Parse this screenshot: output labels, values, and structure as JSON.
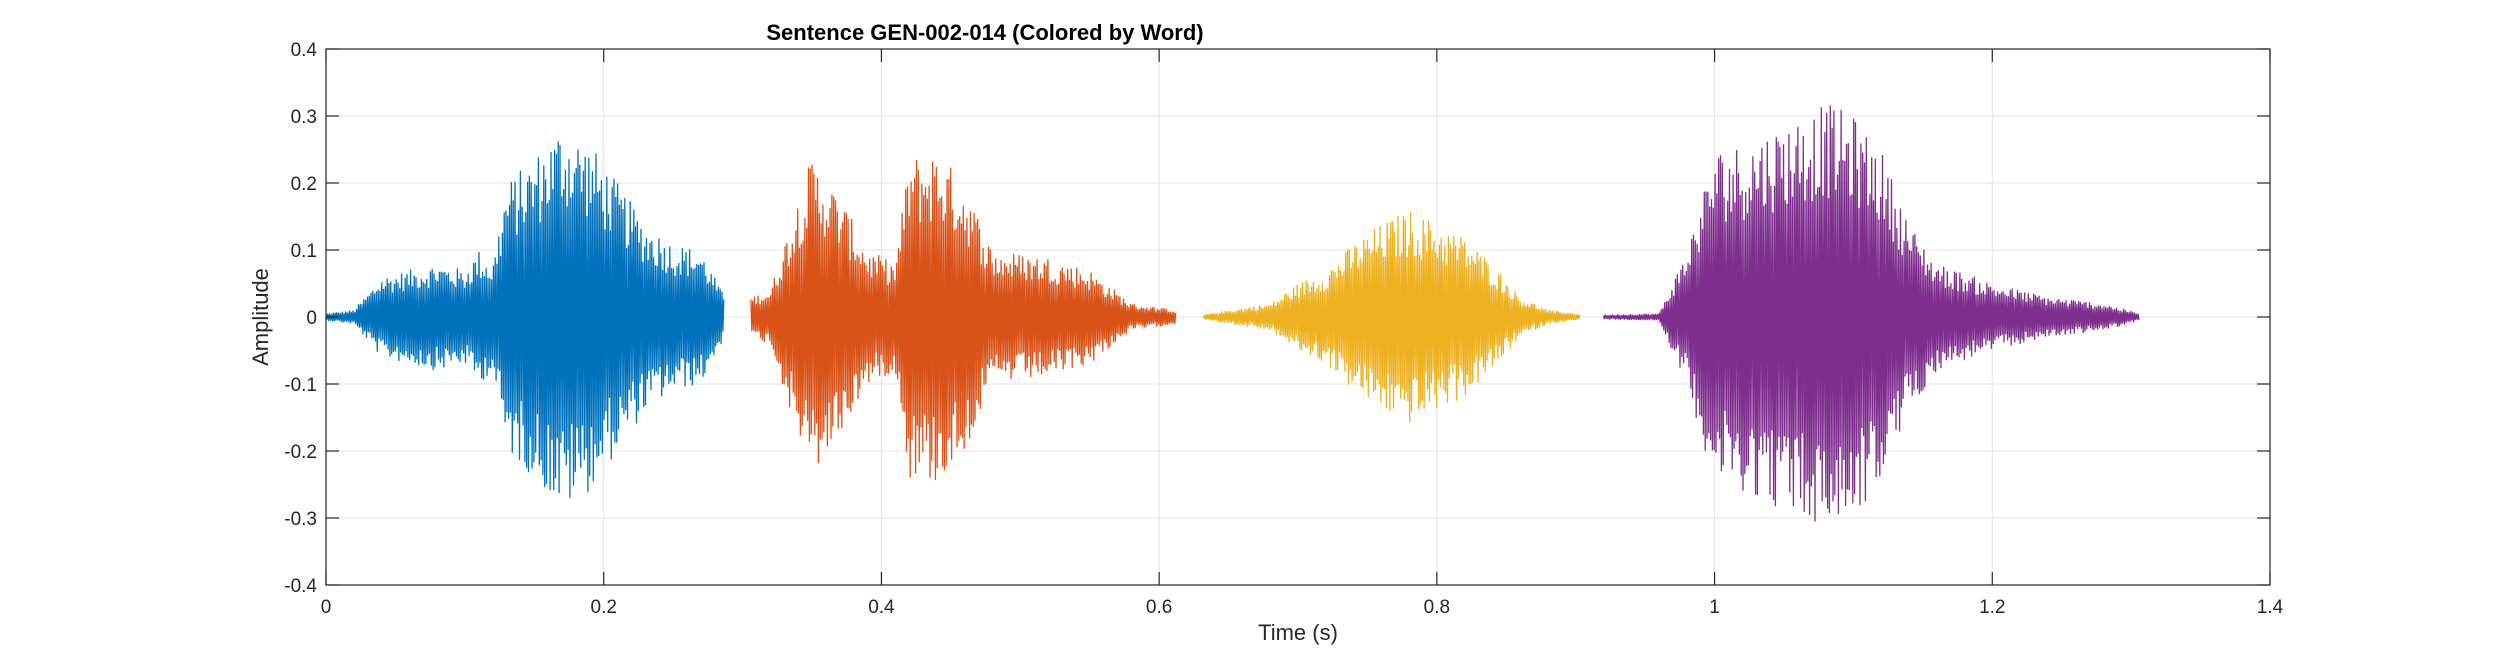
{
  "chart_data": {
    "type": "line",
    "title": "Sentence GEN-002-014 (Colored by Word)",
    "xlabel": "Time (s)",
    "ylabel": "Amplitude",
    "xlim": [
      0,
      1.4
    ],
    "ylim": [
      -0.4,
      0.4
    ],
    "grid": true,
    "xticks": [
      0,
      0.2,
      0.4,
      0.6,
      0.8,
      1,
      1.2,
      1.4
    ],
    "xtick_labels": [
      "0",
      "0.2",
      "0.4",
      "0.6",
      "0.8",
      "1",
      "1.2",
      "1.4"
    ],
    "yticks": [
      -0.4,
      -0.3,
      -0.2,
      -0.1,
      0,
      0.1,
      0.2,
      0.3,
      0.4
    ],
    "ytick_labels": [
      "-0.4",
      "-0.3",
      "-0.2",
      "-0.1",
      "0",
      "0.1",
      "0.2",
      "0.3",
      "0.4"
    ],
    "series": [
      {
        "color": "#0072BD",
        "t_start": 0.0,
        "t_end": 0.287,
        "envelope": [
          [
            0.0,
            0.005
          ],
          [
            0.02,
            0.01
          ],
          [
            0.04,
            0.06
          ],
          [
            0.06,
            0.07
          ],
          [
            0.08,
            0.08
          ],
          [
            0.1,
            0.07
          ],
          [
            0.11,
            0.1
          ],
          [
            0.12,
            0.08
          ],
          [
            0.13,
            0.2
          ],
          [
            0.15,
            0.24
          ],
          [
            0.17,
            0.29
          ],
          [
            0.19,
            0.26
          ],
          [
            0.21,
            0.2
          ],
          [
            0.23,
            0.14
          ],
          [
            0.25,
            0.11
          ],
          [
            0.27,
            0.1
          ],
          [
            0.287,
            0.03
          ]
        ]
      },
      {
        "color": "#D95319",
        "t_start": 0.306,
        "t_end": 0.612,
        "envelope": [
          [
            0.306,
            0.03
          ],
          [
            0.32,
            0.04
          ],
          [
            0.34,
            0.18
          ],
          [
            0.35,
            0.24
          ],
          [
            0.37,
            0.18
          ],
          [
            0.39,
            0.1
          ],
          [
            0.41,
            0.08
          ],
          [
            0.42,
            0.24
          ],
          [
            0.44,
            0.25
          ],
          [
            0.46,
            0.2
          ],
          [
            0.48,
            0.1
          ],
          [
            0.52,
            0.09
          ],
          [
            0.55,
            0.07
          ],
          [
            0.58,
            0.02
          ],
          [
            0.612,
            0.01
          ]
        ]
      },
      {
        "color": "#EDB120",
        "t_start": 0.632,
        "t_end": 0.903,
        "envelope": [
          [
            0.632,
            0.003
          ],
          [
            0.65,
            0.01
          ],
          [
            0.68,
            0.02
          ],
          [
            0.7,
            0.05
          ],
          [
            0.72,
            0.07
          ],
          [
            0.74,
            0.11
          ],
          [
            0.76,
            0.14
          ],
          [
            0.78,
            0.16
          ],
          [
            0.8,
            0.14
          ],
          [
            0.82,
            0.12
          ],
          [
            0.84,
            0.08
          ],
          [
            0.86,
            0.03
          ],
          [
            0.88,
            0.01
          ],
          [
            0.903,
            0.004
          ]
        ]
      },
      {
        "color": "#7E2F8E",
        "t_start": 0.92,
        "t_end": 1.306,
        "envelope": [
          [
            0.92,
            0.003
          ],
          [
            0.96,
            0.005
          ],
          [
            0.98,
            0.1
          ],
          [
            1.0,
            0.25
          ],
          [
            1.02,
            0.26
          ],
          [
            1.04,
            0.28
          ],
          [
            1.06,
            0.3
          ],
          [
            1.08,
            0.32
          ],
          [
            1.1,
            0.3
          ],
          [
            1.12,
            0.25
          ],
          [
            1.14,
            0.14
          ],
          [
            1.16,
            0.08
          ],
          [
            1.2,
            0.05
          ],
          [
            1.24,
            0.03
          ],
          [
            1.28,
            0.02
          ],
          [
            1.306,
            0.005
          ]
        ]
      }
    ]
  }
}
